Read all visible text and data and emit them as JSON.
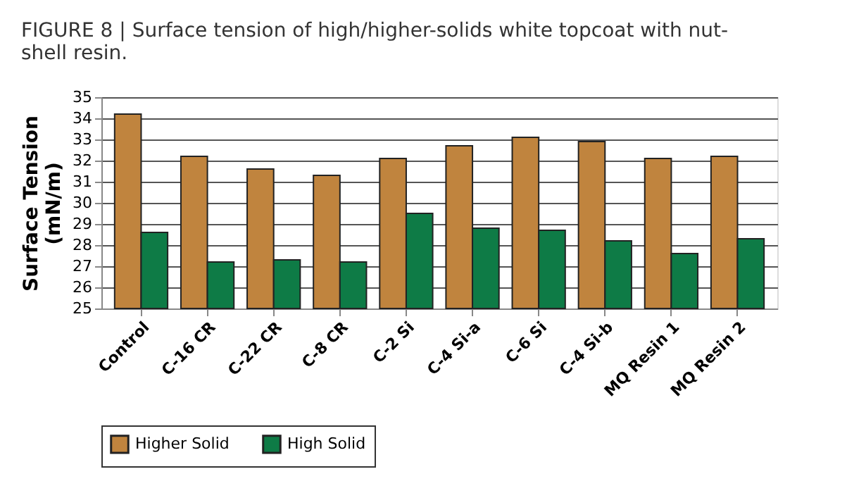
{
  "chart_data": {
    "type": "bar",
    "title": "FIGURE 8 | Surface tension of high/higher-solids white topcoat with nut-shell resin.",
    "ylabel": "Surface Tension (mN/m)",
    "categories": [
      "Control",
      "C-16 CR",
      "C-22 CR",
      "C-8 CR",
      "C-2 Si",
      "C-4 Si-a",
      "C-6 Si",
      "C-4 Si-b",
      "MQ Resin 1",
      "MQ Resin 2"
    ],
    "series": [
      {
        "name": "Higher Solid",
        "color": "#c0843e",
        "values": [
          34.2,
          32.2,
          31.6,
          31.3,
          32.1,
          32.7,
          33.1,
          32.9,
          32.1,
          32.2
        ]
      },
      {
        "name": "High Solid",
        "color": "#0e7b46",
        "values": [
          28.6,
          27.2,
          27.3,
          27.2,
          29.5,
          28.8,
          28.7,
          28.2,
          27.6,
          28.3
        ]
      }
    ],
    "ylim": [
      25,
      35
    ],
    "yticks": [
      25,
      26,
      27,
      28,
      29,
      30,
      31,
      32,
      33,
      34,
      35
    ],
    "grid": "y",
    "legend": "bottom"
  }
}
